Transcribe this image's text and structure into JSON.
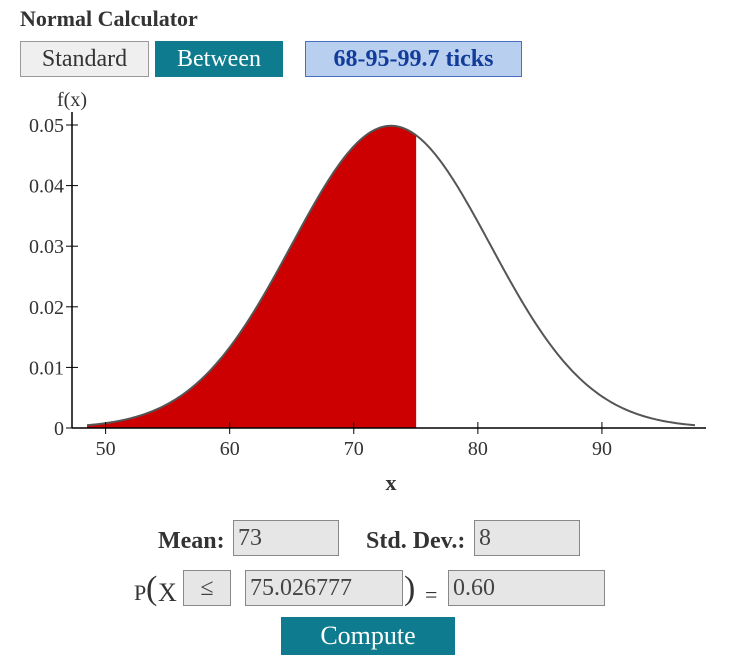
{
  "app": {
    "title": "Normal Calculator"
  },
  "modes": {
    "standard_label": "Standard",
    "between_label": "Between",
    "ticks_label": "68-95-99.7 ticks"
  },
  "chart_data": {
    "type": "area",
    "ylabel": "f(x)",
    "xlabel": "x",
    "x_ticks": [
      50,
      60,
      70,
      80,
      90
    ],
    "y_ticks": [
      "0",
      "0.01",
      "0.02",
      "0.03",
      "0.04",
      "0.05"
    ],
    "xlim": [
      48.5,
      97.5
    ],
    "ylim": [
      0,
      0.05
    ],
    "mean": 73,
    "sd": 8,
    "shaded_from": 48.5,
    "shaded_to": 75.026777,
    "curve_color": "#555555",
    "shade_color": "#cc0000"
  },
  "form": {
    "mean_label": "Mean:",
    "mean_value": "73",
    "sd_label": "Std. Dev.:",
    "sd_value": "8",
    "p_label": "P",
    "open_paren": "(",
    "var_label": "X",
    "operator": "≤",
    "x_value": "75.026777",
    "close_paren": ")",
    "equals": "=",
    "result_value": "0.60",
    "compute_label": "Compute"
  }
}
